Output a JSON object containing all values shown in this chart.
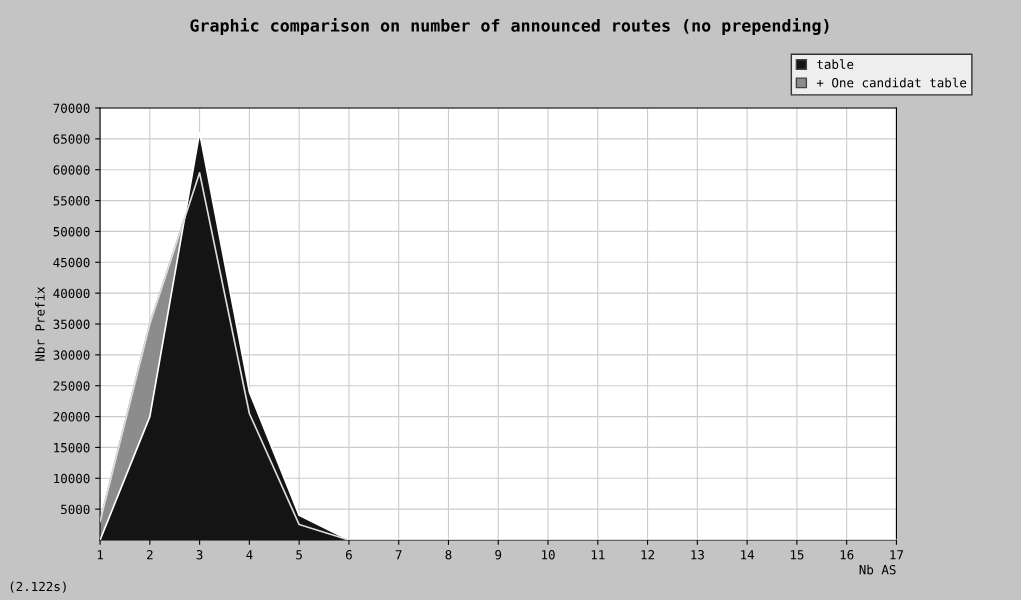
{
  "chart_data": {
    "type": "area",
    "title": "Graphic comparison on number of announced routes (no prepending)",
    "xlabel": "Nb AS",
    "ylabel": "Nbr Prefix",
    "x": [
      1,
      2,
      3,
      4,
      5,
      6,
      7,
      8,
      9,
      10,
      11,
      12,
      13,
      14,
      15,
      16,
      17
    ],
    "series": [
      {
        "name": "table",
        "color": "#141414",
        "values": [
          0,
          20000,
          66000,
          24000,
          4000,
          0,
          0,
          0,
          0,
          0,
          0,
          0,
          0,
          0,
          0,
          0,
          0
        ]
      },
      {
        "name": "+ One candidat table",
        "color": "#8c8c8c",
        "values": [
          3000,
          35000,
          59500,
          20500,
          2500,
          0,
          0,
          0,
          0,
          0,
          0,
          0,
          0,
          0,
          0,
          0,
          0
        ]
      }
    ],
    "xlim": [
      1,
      17
    ],
    "xticks": [
      1,
      2,
      3,
      4,
      5,
      6,
      7,
      8,
      9,
      10,
      11,
      12,
      13,
      14,
      15,
      16,
      17
    ],
    "ylim": [
      0,
      70000
    ],
    "yticks": [
      5000,
      10000,
      15000,
      20000,
      25000,
      30000,
      35000,
      40000,
      45000,
      50000,
      55000,
      60000,
      65000,
      70000
    ],
    "grid": true,
    "legend": "top right",
    "annotations": [
      "(2.122s)"
    ]
  }
}
